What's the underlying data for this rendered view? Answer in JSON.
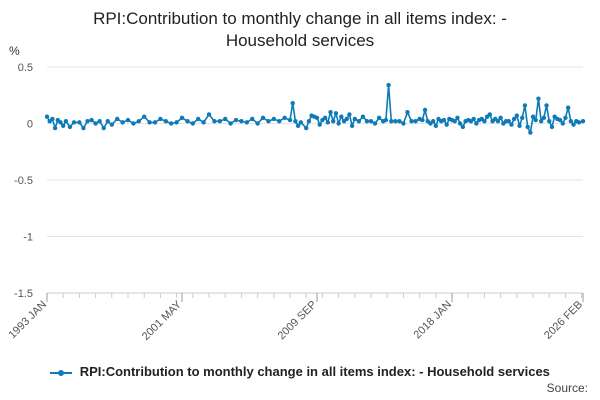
{
  "title_line1": "RPI:Contribution to monthly change in all items index: -",
  "title_line2": "Household services",
  "source_label": "Source:",
  "colors": {
    "series": "#0e7bb8",
    "grid": "#e4e4e4",
    "axis": "#cccccc"
  },
  "chart_data": {
    "type": "line",
    "ylabel": "%",
    "ylim": [
      -1.5,
      0.5
    ],
    "yticks": [
      0.5,
      0,
      -0.5,
      -1,
      -1.5
    ],
    "ytick_labels": [
      "0.5",
      "0",
      "-0.5",
      "-1",
      "-1.5"
    ],
    "x_start": "1993 JAN",
    "x_end": "2026 FEB",
    "xtick_labels": [
      "1993 JAN",
      "2001 MAY",
      "2009 SEP",
      "2018 JAN",
      "2026 FEB"
    ],
    "xtick_values": [
      "1993-01",
      "2001-05",
      "2009-09",
      "2018-01",
      "2026-02"
    ],
    "grid": "horizontal",
    "legend_position": "bottom",
    "series": [
      {
        "name": "RPI:Contribution to monthly change in all items index: - Household services",
        "points": [
          [
            "1993-01",
            0.06
          ],
          [
            "1993-03",
            0.02
          ],
          [
            "1993-05",
            0.04
          ],
          [
            "1993-07",
            -0.04
          ],
          [
            "1993-09",
            0.03
          ],
          [
            "1993-11",
            0.01
          ],
          [
            "1994-01",
            -0.02
          ],
          [
            "1994-03",
            0.02
          ],
          [
            "1994-06",
            -0.03
          ],
          [
            "1994-09",
            0.01
          ],
          [
            "1995-01",
            0.01
          ],
          [
            "1995-04",
            -0.04
          ],
          [
            "1995-07",
            0.02
          ],
          [
            "1995-10",
            0.03
          ],
          [
            "1996-01",
            0.0
          ],
          [
            "1996-04",
            0.02
          ],
          [
            "1996-07",
            -0.04
          ],
          [
            "1996-10",
            0.02
          ],
          [
            "1997-01",
            -0.01
          ],
          [
            "1997-05",
            0.04
          ],
          [
            "1997-09",
            0.01
          ],
          [
            "1998-01",
            0.03
          ],
          [
            "1998-05",
            0.0
          ],
          [
            "1998-09",
            0.02
          ],
          [
            "1999-01",
            0.06
          ],
          [
            "1999-05",
            0.01
          ],
          [
            "1999-09",
            0.01
          ],
          [
            "2000-01",
            0.04
          ],
          [
            "2000-05",
            0.02
          ],
          [
            "2000-09",
            0.0
          ],
          [
            "2001-01",
            0.01
          ],
          [
            "2001-05",
            0.05
          ],
          [
            "2001-09",
            0.02
          ],
          [
            "2002-01",
            0.0
          ],
          [
            "2002-05",
            0.04
          ],
          [
            "2002-09",
            0.01
          ],
          [
            "2003-01",
            0.08
          ],
          [
            "2003-05",
            0.02
          ],
          [
            "2003-09",
            0.02
          ],
          [
            "2004-01",
            0.04
          ],
          [
            "2004-05",
            0.0
          ],
          [
            "2004-09",
            0.03
          ],
          [
            "2005-01",
            0.02
          ],
          [
            "2005-05",
            0.01
          ],
          [
            "2005-09",
            0.04
          ],
          [
            "2006-01",
            0.0
          ],
          [
            "2006-05",
            0.05
          ],
          [
            "2006-09",
            0.02
          ],
          [
            "2007-01",
            0.04
          ],
          [
            "2007-05",
            0.02
          ],
          [
            "2007-09",
            0.05
          ],
          [
            "2008-01",
            0.03
          ],
          [
            "2008-03",
            0.18
          ],
          [
            "2008-05",
            0.02
          ],
          [
            "2008-07",
            -0.02
          ],
          [
            "2008-09",
            0.01
          ],
          [
            "2009-01",
            -0.04
          ],
          [
            "2009-03",
            0.02
          ],
          [
            "2009-05",
            0.07
          ],
          [
            "2009-07",
            0.06
          ],
          [
            "2009-09",
            0.05
          ],
          [
            "2009-11",
            -0.01
          ],
          [
            "2010-01",
            0.03
          ],
          [
            "2010-03",
            0.05
          ],
          [
            "2010-05",
            0.01
          ],
          [
            "2010-07",
            0.1
          ],
          [
            "2010-09",
            0.02
          ],
          [
            "2010-11",
            0.09
          ],
          [
            "2011-01",
            0.0
          ],
          [
            "2011-03",
            0.06
          ],
          [
            "2011-05",
            0.02
          ],
          [
            "2011-07",
            0.04
          ],
          [
            "2011-09",
            0.08
          ],
          [
            "2011-11",
            -0.02
          ],
          [
            "2012-01",
            0.04
          ],
          [
            "2012-04",
            0.02
          ],
          [
            "2012-07",
            0.06
          ],
          [
            "2012-10",
            0.02
          ],
          [
            "2013-01",
            0.02
          ],
          [
            "2013-04",
            0.0
          ],
          [
            "2013-07",
            0.05
          ],
          [
            "2013-10",
            0.02
          ],
          [
            "2013-12",
            0.03
          ],
          [
            "2014-02",
            0.34
          ],
          [
            "2014-04",
            0.02
          ],
          [
            "2014-07",
            0.02
          ],
          [
            "2014-10",
            0.02
          ],
          [
            "2015-01",
            0.0
          ],
          [
            "2015-04",
            0.1
          ],
          [
            "2015-07",
            0.02
          ],
          [
            "2015-10",
            0.02
          ],
          [
            "2016-01",
            0.04
          ],
          [
            "2016-03",
            0.03
          ],
          [
            "2016-05",
            0.12
          ],
          [
            "2016-07",
            0.02
          ],
          [
            "2016-09",
            0.0
          ],
          [
            "2016-11",
            0.02
          ],
          [
            "2017-01",
            -0.02
          ],
          [
            "2017-03",
            0.04
          ],
          [
            "2017-05",
            0.02
          ],
          [
            "2017-07",
            0.03
          ],
          [
            "2017-09",
            -0.01
          ],
          [
            "2017-11",
            0.04
          ],
          [
            "2018-01",
            0.03
          ],
          [
            "2018-03",
            0.02
          ],
          [
            "2018-05",
            0.05
          ],
          [
            "2018-07",
            0.0
          ],
          [
            "2018-09",
            -0.03
          ],
          [
            "2018-11",
            0.02
          ],
          [
            "2019-01",
            0.03
          ],
          [
            "2019-03",
            0.02
          ],
          [
            "2019-05",
            0.04
          ],
          [
            "2019-07",
            0.0
          ],
          [
            "2019-09",
            0.03
          ],
          [
            "2019-11",
            0.04
          ],
          [
            "2020-01",
            0.02
          ],
          [
            "2020-03",
            0.06
          ],
          [
            "2020-05",
            0.08
          ],
          [
            "2020-07",
            0.02
          ],
          [
            "2020-09",
            0.04
          ],
          [
            "2020-11",
            0.02
          ],
          [
            "2021-01",
            0.05
          ],
          [
            "2021-03",
            0.0
          ],
          [
            "2021-05",
            0.02
          ],
          [
            "2021-07",
            0.02
          ],
          [
            "2021-09",
            -0.01
          ],
          [
            "2021-11",
            0.04
          ],
          [
            "2022-01",
            0.07
          ],
          [
            "2022-03",
            -0.02
          ],
          [
            "2022-05",
            0.05
          ],
          [
            "2022-07",
            0.16
          ],
          [
            "2022-09",
            -0.03
          ],
          [
            "2022-11",
            -0.08
          ],
          [
            "2023-01",
            0.06
          ],
          [
            "2023-03",
            0.03
          ],
          [
            "2023-05",
            0.22
          ],
          [
            "2023-07",
            0.02
          ],
          [
            "2023-09",
            0.05
          ],
          [
            "2023-11",
            0.16
          ],
          [
            "2024-01",
            0.02
          ],
          [
            "2024-03",
            -0.03
          ],
          [
            "2024-05",
            0.06
          ],
          [
            "2024-07",
            0.04
          ],
          [
            "2024-09",
            0.03
          ],
          [
            "2024-11",
            0.0
          ],
          [
            "2025-01",
            0.05
          ],
          [
            "2025-03",
            0.14
          ],
          [
            "2025-05",
            0.02
          ],
          [
            "2025-07",
            -0.01
          ],
          [
            "2025-09",
            0.02
          ],
          [
            "2025-11",
            0.01
          ],
          [
            "2026-02",
            0.02
          ]
        ]
      }
    ]
  }
}
